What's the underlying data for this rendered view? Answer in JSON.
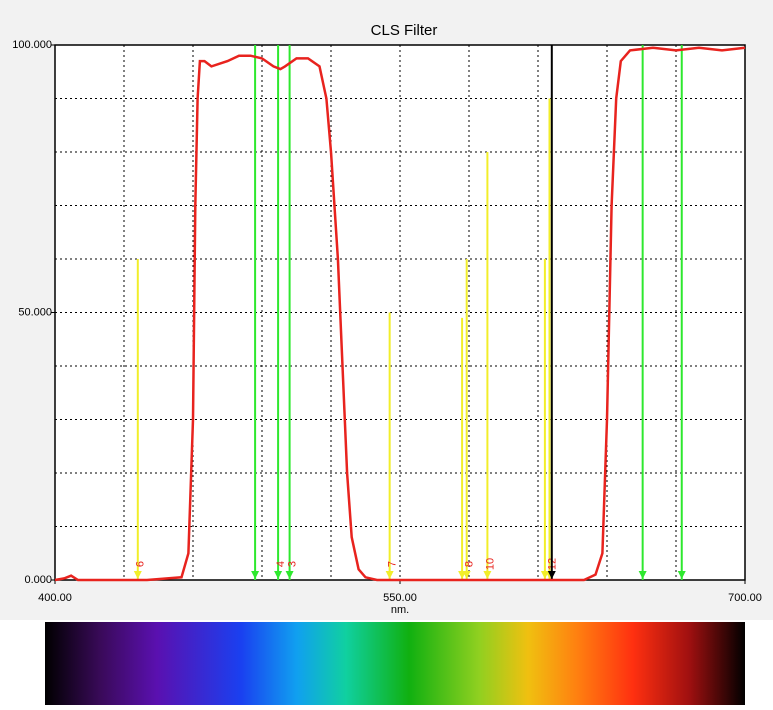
{
  "chart_data": {
    "type": "line",
    "title": "CLS Filter",
    "x_label": "nm.",
    "x": [
      400,
      404,
      407,
      410,
      440,
      455,
      458,
      460,
      461,
      462,
      463,
      465,
      468,
      475,
      480,
      485,
      490,
      495,
      498,
      500,
      505,
      510,
      515,
      518,
      520,
      523,
      525,
      527,
      529,
      532,
      535,
      540,
      600,
      630,
      635,
      638,
      640,
      642,
      644,
      646,
      650,
      660,
      670,
      680,
      690,
      700
    ],
    "values": [
      0,
      0.3,
      0.8,
      0,
      0,
      0.5,
      5,
      30,
      70,
      90,
      97,
      97,
      96,
      97,
      98,
      98,
      97.5,
      96,
      95.5,
      96,
      97.5,
      97.5,
      96,
      90,
      80,
      60,
      40,
      20,
      8,
      2,
      0.5,
      0,
      0,
      0,
      1,
      5,
      30,
      70,
      90,
      97,
      99,
      99.5,
      99,
      99.5,
      99,
      99.5
    ],
    "color": "#e8231e",
    "xlim": [
      400,
      700
    ],
    "ylim": [
      0,
      100
    ],
    "xticks": [
      {
        "value": 400,
        "label": "400.00"
      },
      {
        "value": 550,
        "label": "550.00"
      },
      {
        "value": 700,
        "label": "700.00"
      }
    ],
    "yticks": [
      {
        "value": 0,
        "label": "0.000"
      },
      {
        "value": 50,
        "label": "50.000"
      },
      {
        "value": 100,
        "label": "100.000"
      }
    ],
    "xgrid": [
      430,
      460,
      490,
      520,
      550,
      580,
      610,
      640,
      670
    ],
    "ygrid": [
      10,
      20,
      30,
      40,
      50,
      60,
      70,
      80,
      90
    ],
    "grid": true,
    "markers": [
      {
        "x": 436,
        "height": 60,
        "color": "#f2ee2a",
        "label": "6"
      },
      {
        "x": 487,
        "height": 100,
        "color": "#2ee82e"
      },
      {
        "x": 497,
        "height": 100,
        "color": "#2ee82e",
        "label": "4"
      },
      {
        "x": 502,
        "height": 100,
        "color": "#2ee82e",
        "label": "3"
      },
      {
        "x": 545.5,
        "height": 50,
        "color": "#f2ee2a",
        "label": "7"
      },
      {
        "x": 577,
        "height": 49,
        "color": "#f2ee2a"
      },
      {
        "x": 579,
        "height": 60,
        "color": "#f2ee2a",
        "label": "8"
      },
      {
        "x": 588,
        "height": 80,
        "color": "#f2ee2a",
        "label": "10"
      },
      {
        "x": 613,
        "height": 60,
        "color": "#f2ee2a"
      },
      {
        "x": 615,
        "height": 90,
        "color": "#f2ee2a",
        "label": "12"
      },
      {
        "x": 616,
        "height": 100,
        "color": "#000000"
      },
      {
        "x": 655.5,
        "height": 100,
        "color": "#2ee82e"
      },
      {
        "x": 672.5,
        "height": 100,
        "color": "#2ee82e"
      }
    ]
  }
}
